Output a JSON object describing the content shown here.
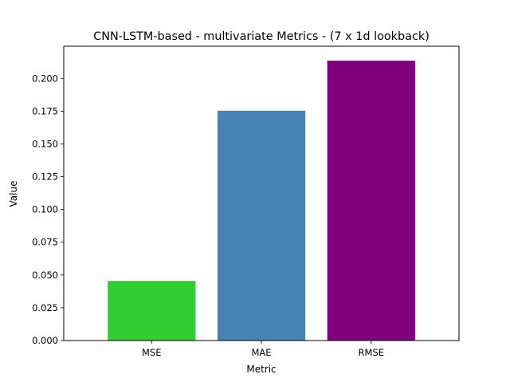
{
  "chart_data": {
    "type": "bar",
    "title": "CNN-LSTM-based - multivariate Metrics - (7 x 1d lookback)",
    "xlabel": "Metric",
    "ylabel": "Value",
    "categories": [
      "MSE",
      "MAE",
      "RMSE"
    ],
    "values": [
      0.0455,
      0.1753,
      0.2135
    ],
    "colors": [
      "#32cd32",
      "#4682b4",
      "#800080"
    ],
    "ylim": [
      0,
      0.2245
    ],
    "yticks": [
      0.0,
      0.025,
      0.05,
      0.075,
      0.1,
      0.125,
      0.15,
      0.175,
      0.2
    ],
    "ytick_labels": [
      "0.000",
      "0.025",
      "0.050",
      "0.075",
      "0.100",
      "0.125",
      "0.150",
      "0.175",
      "0.200"
    ],
    "grid": false,
    "legend": "none"
  }
}
